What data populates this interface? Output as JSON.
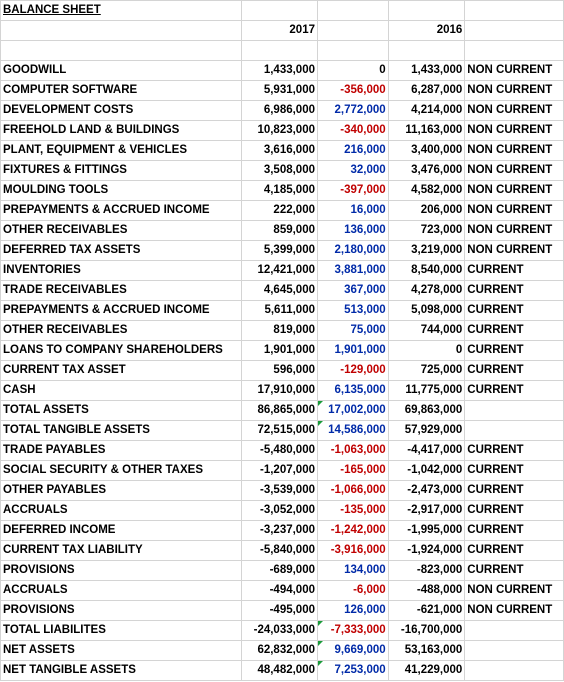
{
  "sheet": {
    "title": "BALANCE SHEET",
    "year_current": "2017",
    "year_prior": "2016",
    "colors": {
      "negative": "#c00000",
      "positive": "#002aa8",
      "flag": "#1a9b3a"
    },
    "rows": [
      {
        "label": "GOODWILL",
        "y2017": "1,433,000",
        "diff": "0",
        "diff_sign": "zero",
        "y2016": "1,433,000",
        "class": "NON CURRENT",
        "flag": false
      },
      {
        "label": "COMPUTER SOFTWARE",
        "y2017": "5,931,000",
        "diff": "-356,000",
        "diff_sign": "neg",
        "y2016": "6,287,000",
        "class": "NON CURRENT",
        "flag": false
      },
      {
        "label": "DEVELOPMENT COSTS",
        "y2017": "6,986,000",
        "diff": "2,772,000",
        "diff_sign": "pos",
        "y2016": "4,214,000",
        "class": "NON CURRENT",
        "flag": false
      },
      {
        "label": "FREEHOLD LAND & BUILDINGS",
        "y2017": "10,823,000",
        "diff": "-340,000",
        "diff_sign": "neg",
        "y2016": "11,163,000",
        "class": "NON CURRENT",
        "flag": false
      },
      {
        "label": "PLANT, EQUIPMENT & VEHICLES",
        "y2017": "3,616,000",
        "diff": "216,000",
        "diff_sign": "pos",
        "y2016": "3,400,000",
        "class": "NON CURRENT",
        "flag": false
      },
      {
        "label": "FIXTURES & FITTINGS",
        "y2017": "3,508,000",
        "diff": "32,000",
        "diff_sign": "pos",
        "y2016": "3,476,000",
        "class": "NON CURRENT",
        "flag": false
      },
      {
        "label": "MOULDING TOOLS",
        "y2017": "4,185,000",
        "diff": "-397,000",
        "diff_sign": "neg",
        "y2016": "4,582,000",
        "class": "NON CURRENT",
        "flag": false
      },
      {
        "label": "PREPAYMENTS & ACCRUED INCOME",
        "y2017": "222,000",
        "diff": "16,000",
        "diff_sign": "pos",
        "y2016": "206,000",
        "class": "NON CURRENT",
        "flag": false
      },
      {
        "label": "OTHER RECEIVABLES",
        "y2017": "859,000",
        "diff": "136,000",
        "diff_sign": "pos",
        "y2016": "723,000",
        "class": "NON CURRENT",
        "flag": false
      },
      {
        "label": "DEFERRED TAX ASSETS",
        "y2017": "5,399,000",
        "diff": "2,180,000",
        "diff_sign": "pos",
        "y2016": "3,219,000",
        "class": "NON CURRENT",
        "flag": false
      },
      {
        "label": "INVENTORIES",
        "y2017": "12,421,000",
        "diff": "3,881,000",
        "diff_sign": "pos",
        "y2016": "8,540,000",
        "class": "CURRENT",
        "flag": false
      },
      {
        "label": "TRADE RECEIVABLES",
        "y2017": "4,645,000",
        "diff": "367,000",
        "diff_sign": "pos",
        "y2016": "4,278,000",
        "class": "CURRENT",
        "flag": false
      },
      {
        "label": "PREPAYMENTS & ACCRUED INCOME",
        "y2017": "5,611,000",
        "diff": "513,000",
        "diff_sign": "pos",
        "y2016": "5,098,000",
        "class": "CURRENT",
        "flag": false
      },
      {
        "label": "OTHER RECEIVABLES",
        "y2017": "819,000",
        "diff": "75,000",
        "diff_sign": "pos",
        "y2016": "744,000",
        "class": "CURRENT",
        "flag": false
      },
      {
        "label": "LOANS TO COMPANY SHAREHOLDERS",
        "y2017": "1,901,000",
        "diff": "1,901,000",
        "diff_sign": "pos",
        "y2016": "0",
        "class": "CURRENT",
        "flag": false
      },
      {
        "label": "CURRENT TAX ASSET",
        "y2017": "596,000",
        "diff": "-129,000",
        "diff_sign": "neg",
        "y2016": "725,000",
        "class": "CURRENT",
        "flag": false
      },
      {
        "label": "CASH",
        "y2017": "17,910,000",
        "diff": "6,135,000",
        "diff_sign": "pos",
        "y2016": "11,775,000",
        "class": "CURRENT",
        "flag": false
      },
      {
        "label": "TOTAL ASSETS",
        "y2017": "86,865,000",
        "diff": "17,002,000",
        "diff_sign": "pos",
        "y2016": "69,863,000",
        "class": "",
        "flag": true
      },
      {
        "label": "TOTAL TANGIBLE ASSETS",
        "y2017": "72,515,000",
        "diff": "14,586,000",
        "diff_sign": "pos",
        "y2016": "57,929,000",
        "class": "",
        "flag": true
      },
      {
        "label": "TRADE PAYABLES",
        "y2017": "-5,480,000",
        "diff": "-1,063,000",
        "diff_sign": "neg",
        "y2016": "-4,417,000",
        "class": "CURRENT",
        "flag": false
      },
      {
        "label": "SOCIAL SECURITY & OTHER TAXES",
        "y2017": "-1,207,000",
        "diff": "-165,000",
        "diff_sign": "neg",
        "y2016": "-1,042,000",
        "class": "CURRENT",
        "flag": false
      },
      {
        "label": "OTHER PAYABLES",
        "y2017": "-3,539,000",
        "diff": "-1,066,000",
        "diff_sign": "neg",
        "y2016": "-2,473,000",
        "class": "CURRENT",
        "flag": false
      },
      {
        "label": "ACCRUALS",
        "y2017": "-3,052,000",
        "diff": "-135,000",
        "diff_sign": "neg",
        "y2016": "-2,917,000",
        "class": "CURRENT",
        "flag": false
      },
      {
        "label": "DEFERRED INCOME",
        "y2017": "-3,237,000",
        "diff": "-1,242,000",
        "diff_sign": "neg",
        "y2016": "-1,995,000",
        "class": "CURRENT",
        "flag": false
      },
      {
        "label": "CURRENT TAX LIABILITY",
        "y2017": "-5,840,000",
        "diff": "-3,916,000",
        "diff_sign": "neg",
        "y2016": "-1,924,000",
        "class": "CURRENT",
        "flag": false
      },
      {
        "label": "PROVISIONS",
        "y2017": "-689,000",
        "diff": "134,000",
        "diff_sign": "pos",
        "y2016": "-823,000",
        "class": "CURRENT",
        "flag": false
      },
      {
        "label": "ACCRUALS",
        "y2017": "-494,000",
        "diff": "-6,000",
        "diff_sign": "neg",
        "y2016": "-488,000",
        "class": "NON CURRENT",
        "flag": false
      },
      {
        "label": "PROVISIONS",
        "y2017": "-495,000",
        "diff": "126,000",
        "diff_sign": "pos",
        "y2016": "-621,000",
        "class": "NON CURRENT",
        "flag": false
      },
      {
        "label": "TOTAL LIABILITES",
        "y2017": "-24,033,000",
        "diff": "-7,333,000",
        "diff_sign": "neg",
        "y2016": "-16,700,000",
        "class": "",
        "flag": true
      },
      {
        "label": "NET ASSETS",
        "y2017": "62,832,000",
        "diff": "9,669,000",
        "diff_sign": "pos",
        "y2016": "53,163,000",
        "class": "",
        "flag": true
      },
      {
        "label": "NET TANGIBLE ASSETS",
        "y2017": "48,482,000",
        "diff": "7,253,000",
        "diff_sign": "pos",
        "y2016": "41,229,000",
        "class": "",
        "flag": true
      }
    ]
  }
}
